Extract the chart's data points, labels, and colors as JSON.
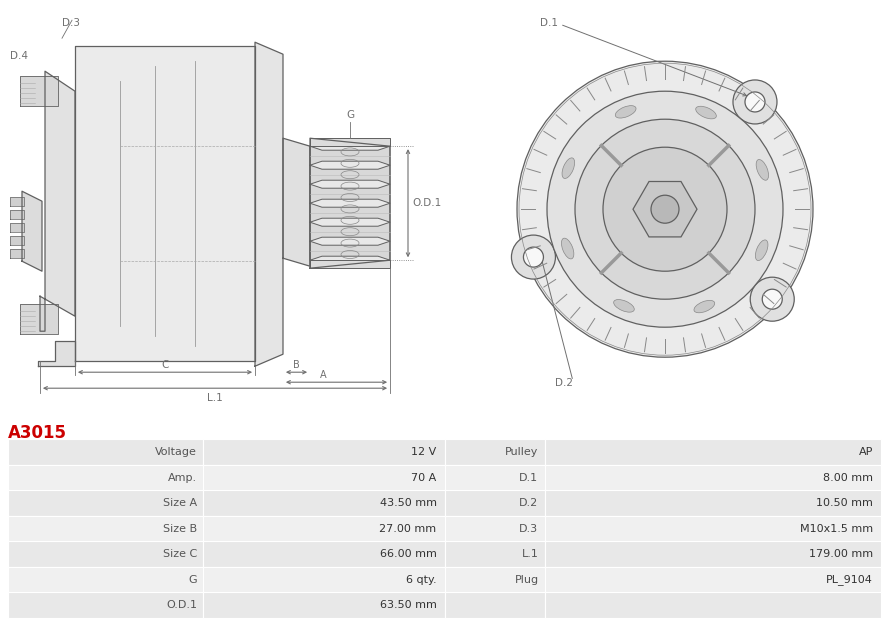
{
  "title": "A3015",
  "title_color": "#cc0000",
  "bg_color": "#ffffff",
  "table_row_bg1": "#e8e8e8",
  "table_row_bg2": "#f0f0f0",
  "table_border_color": "#ffffff",
  "left_col_labels": [
    "Voltage",
    "Amp.",
    "Size A",
    "Size B",
    "Size C",
    "G",
    "O.D.1"
  ],
  "left_col_values": [
    "12 V",
    "70 A",
    "43.50 mm",
    "27.00 mm",
    "66.00 mm",
    "6 qty.",
    "63.50 mm"
  ],
  "right_col_labels": [
    "Pulley",
    "D.1",
    "D.2",
    "D.3",
    "L.1",
    "Plug",
    ""
  ],
  "right_col_values": [
    "AP",
    "8.00 mm",
    "10.50 mm",
    "M10x1.5 mm",
    "179.00 mm",
    "PL_9104",
    ""
  ]
}
